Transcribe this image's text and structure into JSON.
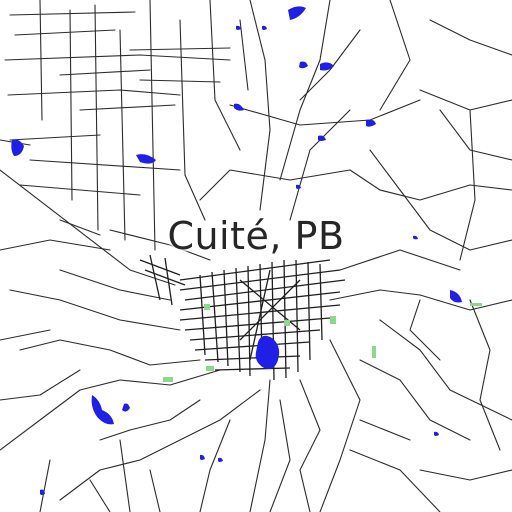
{
  "map": {
    "title": "Cuité, PB",
    "colors": {
      "background": "#ffffff",
      "roads": "#2b2b2b",
      "water": "#1f1fe6",
      "parks": "#8fd68f",
      "label": "#262626"
    },
    "layers": [
      "roads",
      "water",
      "parks",
      "city-grid"
    ]
  }
}
